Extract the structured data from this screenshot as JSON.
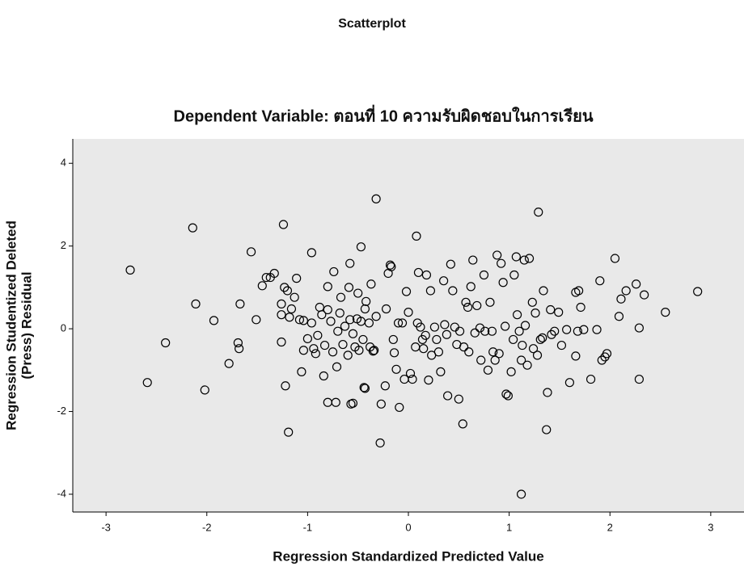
{
  "chart_data": {
    "type": "scatter",
    "title": "Scatterplot",
    "subtitle": "Dependent Variable: ตอนที่ 10 ความรับผิดชอบในการเรียน",
    "xlabel": "Regression Standardized Predicted Value",
    "ylabel": [
      "Regression Studentized Deleted",
      "(Press) Residual"
    ],
    "xlim": [
      -3.33,
      3.33
    ],
    "ylim": [
      -4.43,
      4.59
    ],
    "xticks": [
      -3,
      -2,
      -1,
      0,
      1,
      2,
      3
    ],
    "yticks": [
      -4,
      -2,
      0,
      2,
      4
    ],
    "color": "#000000",
    "x": [
      -2.76,
      -2.59,
      -2.41,
      -2.14,
      -2.11,
      -2.02,
      -1.93,
      -1.78,
      -1.69,
      -1.68,
      -1.67,
      -1.56,
      -1.51,
      -1.45,
      -1.41,
      -1.37,
      -1.33,
      -1.26,
      -1.26,
      -1.26,
      -1.23,
      -1.2,
      -1.24,
      -1.22,
      -1.19,
      -1.18,
      -1.16,
      -1.13,
      -1.11,
      -1.08,
      -1.06,
      -1.04,
      -1.04,
      -1.0,
      -0.96,
      -0.96,
      -0.94,
      -0.92,
      -0.9,
      -0.88,
      -0.86,
      -0.84,
      -0.83,
      -0.8,
      -0.8,
      -0.8,
      -0.77,
      -0.75,
      -0.74,
      -0.72,
      -0.71,
      -0.7,
      -0.68,
      -0.67,
      -0.65,
      -0.63,
      -0.6,
      -0.59,
      -0.58,
      -0.58,
      -0.57,
      -0.55,
      -0.55,
      -0.53,
      -0.51,
      -0.5,
      -0.49,
      -0.47,
      -0.47,
      -0.45,
      -0.44,
      -0.43,
      -0.43,
      -0.42,
      -0.39,
      -0.38,
      -0.37,
      -0.35,
      -0.34,
      -0.32,
      -0.32,
      -0.28,
      -0.27,
      -0.23,
      -0.22,
      -0.2,
      -0.18,
      -0.17,
      -0.15,
      -0.14,
      -0.12,
      -0.1,
      -0.09,
      -0.06,
      -0.04,
      -0.02,
      0.0,
      0.02,
      0.04,
      0.07,
      0.08,
      0.09,
      0.1,
      0.12,
      0.14,
      0.15,
      0.17,
      0.18,
      0.2,
      0.22,
      0.23,
      0.26,
      0.28,
      0.3,
      0.32,
      0.35,
      0.36,
      0.38,
      0.39,
      0.42,
      0.44,
      0.46,
      0.48,
      0.5,
      0.51,
      0.54,
      0.55,
      0.57,
      0.59,
      0.6,
      0.62,
      0.64,
      0.66,
      0.68,
      0.71,
      0.72,
      0.75,
      0.76,
      0.79,
      0.81,
      0.83,
      0.84,
      0.86,
      0.88,
      0.9,
      0.92,
      0.94,
      0.96,
      0.97,
      0.99,
      1.02,
      1.04,
      1.05,
      1.07,
      1.08,
      1.1,
      1.12,
      1.12,
      1.13,
      1.15,
      1.16,
      1.18,
      1.2,
      1.23,
      1.24,
      1.26,
      1.28,
      1.29,
      1.31,
      1.33,
      1.34,
      1.37,
      1.38,
      1.41,
      1.42,
      1.45,
      1.49,
      1.52,
      1.57,
      1.6,
      1.66,
      1.66,
      1.68,
      1.69,
      1.71,
      1.74,
      1.81,
      1.87,
      1.9,
      1.92,
      1.95,
      1.97,
      2.05,
      2.09,
      2.11,
      2.16,
      2.26,
      2.29,
      2.29,
      2.34,
      2.55,
      2.87
    ],
    "values": [
      1.42,
      -1.3,
      -0.34,
      2.44,
      0.6,
      -1.48,
      0.2,
      -0.84,
      -0.34,
      -0.48,
      0.6,
      1.86,
      0.22,
      1.04,
      1.24,
      1.24,
      1.34,
      0.6,
      0.34,
      -0.32,
      1.0,
      0.92,
      2.52,
      -1.38,
      -2.5,
      0.28,
      0.48,
      0.76,
      1.22,
      0.22,
      -1.04,
      0.2,
      -0.52,
      -0.24,
      0.14,
      1.84,
      -0.48,
      -0.6,
      -0.16,
      0.52,
      0.34,
      -1.14,
      -0.4,
      1.02,
      -1.78,
      0.46,
      0.18,
      -0.56,
      1.38,
      -1.78,
      -0.92,
      -0.06,
      0.38,
      0.76,
      -0.38,
      0.06,
      -0.64,
      1.0,
      1.58,
      0.22,
      -1.82,
      -1.8,
      -0.12,
      -0.44,
      0.24,
      0.86,
      -0.52,
      1.98,
      0.18,
      -0.26,
      -1.42,
      -1.44,
      0.48,
      0.66,
      0.14,
      -0.44,
      1.08,
      -0.54,
      -0.52,
      3.14,
      0.3,
      -2.76,
      -1.82,
      -1.38,
      0.48,
      1.34,
      1.54,
      1.5,
      -0.26,
      -0.58,
      -0.98,
      0.14,
      -1.9,
      0.14,
      -1.22,
      0.9,
      0.4,
      -1.08,
      -1.22,
      -0.44,
      2.24,
      0.14,
      1.36,
      0.04,
      -0.26,
      -0.48,
      -0.16,
      1.3,
      -1.24,
      0.92,
      -0.64,
      0.04,
      -0.26,
      -0.56,
      -1.04,
      1.16,
      0.1,
      -0.14,
      -1.62,
      1.56,
      0.92,
      0.04,
      -0.38,
      -1.7,
      -0.06,
      -2.3,
      -0.44,
      0.64,
      0.52,
      -0.56,
      1.02,
      1.66,
      -0.1,
      0.56,
      0.02,
      -0.76,
      1.3,
      -0.06,
      -1.0,
      0.64,
      -0.06,
      -0.56,
      -0.76,
      1.78,
      -0.6,
      1.58,
      1.12,
      0.06,
      -1.58,
      -1.62,
      -1.04,
      -0.26,
      1.3,
      1.74,
      0.34,
      -0.06,
      -0.76,
      -4.0,
      -0.4,
      1.66,
      0.08,
      -0.88,
      1.7,
      0.64,
      -0.48,
      0.38,
      -0.64,
      2.82,
      -0.26,
      -0.22,
      0.92,
      -2.44,
      -1.54,
      0.46,
      -0.14,
      -0.06,
      0.4,
      -0.4,
      -0.02,
      -1.3,
      -0.66,
      0.88,
      -0.06,
      0.92,
      0.52,
      -0.02,
      -1.22,
      -0.02,
      1.16,
      -0.76,
      -0.68,
      -0.6,
      1.7,
      0.3,
      0.72,
      0.92,
      1.08,
      0.02,
      -1.22,
      0.82,
      0.4,
      0.9
    ]
  }
}
